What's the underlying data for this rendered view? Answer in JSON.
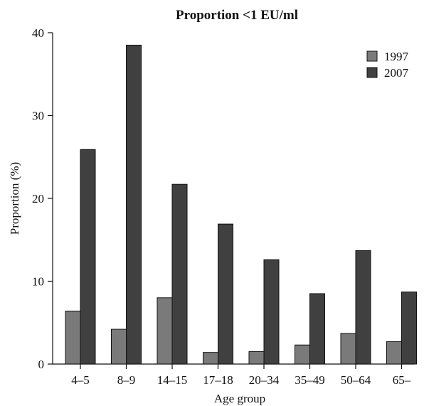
{
  "chart_data": {
    "type": "bar",
    "title": "Proportion <1 EU/ml",
    "xlabel": "Age group",
    "ylabel": "Proportion (%)",
    "ylim": [
      0,
      40
    ],
    "yticks": [
      0,
      10,
      20,
      30,
      40
    ],
    "categories": [
      "4–5",
      "8–9",
      "14–15",
      "17–18",
      "20–34",
      "35–49",
      "50–64",
      "65–"
    ],
    "series": [
      {
        "name": "1997",
        "color": "#7a7a7a",
        "values": [
          6.4,
          4.2,
          8.0,
          1.4,
          1.5,
          2.3,
          3.7,
          2.7
        ]
      },
      {
        "name": "2007",
        "color": "#404040",
        "values": [
          25.9,
          38.5,
          21.7,
          16.9,
          12.6,
          8.5,
          13.7,
          8.7
        ]
      }
    ],
    "legend_position": "top-right",
    "grid": false
  }
}
